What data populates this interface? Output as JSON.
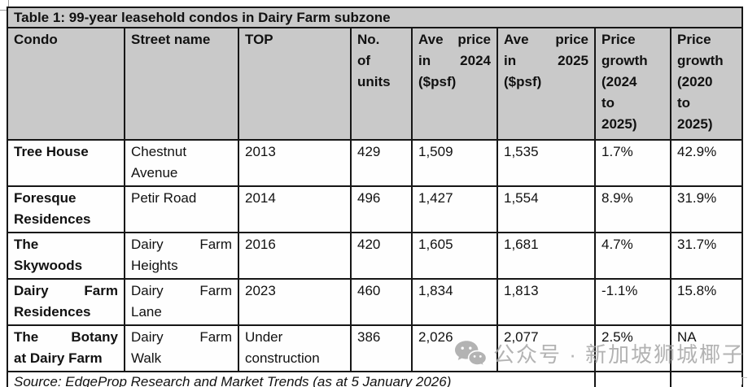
{
  "title": "Table 1: 99-year leasehold condos in Dairy Farm subzone",
  "table": {
    "columns": [
      "Condo",
      "Street name",
      "TOP",
      "No.\nof\nunits",
      "Ave price\nin 2024\n($psf)",
      "Ave price\nin 2025\n($psf)",
      "Price\ngrowth\n(2024\nto\n2025)",
      "Price\ngrowth\n(2020\nto\n2025)"
    ],
    "rows": [
      [
        "Tree House",
        "Chestnut\nAvenue",
        "2013",
        "429",
        "1,509",
        "1,535",
        "1.7%",
        "42.9%"
      ],
      [
        "Foresque\nResidences",
        "Petir Road",
        "2014",
        "496",
        "1,427",
        "1,554",
        "8.9%",
        "31.9%"
      ],
      [
        "The\nSkywoods",
        "Dairy Farm\nHeights",
        "2016",
        "420",
        "1,605",
        "1,681",
        "4.7%",
        "31.7%"
      ],
      [
        "Dairy Farm\nResidences",
        "Dairy Farm\nLane",
        "2023",
        "460",
        "1,834",
        "1,813",
        "-1.1%",
        "15.8%"
      ],
      [
        "The Botany\nat Dairy Farm",
        "Dairy Farm\nWalk",
        "Under\nconstruction",
        "386",
        "2,026",
        "2,077",
        "2.5%",
        "NA"
      ]
    ],
    "source": "Source: EdgeProp Research and Market Trends (as at 5 January 2026)"
  },
  "watermark": {
    "icon": "wechat-icon",
    "text": "公众号 · 新加坡狮城椰子"
  },
  "colors": {
    "header_bg": "#c9c9c9",
    "border": "#161616",
    "watermark_gray": "#a6a6a6"
  }
}
